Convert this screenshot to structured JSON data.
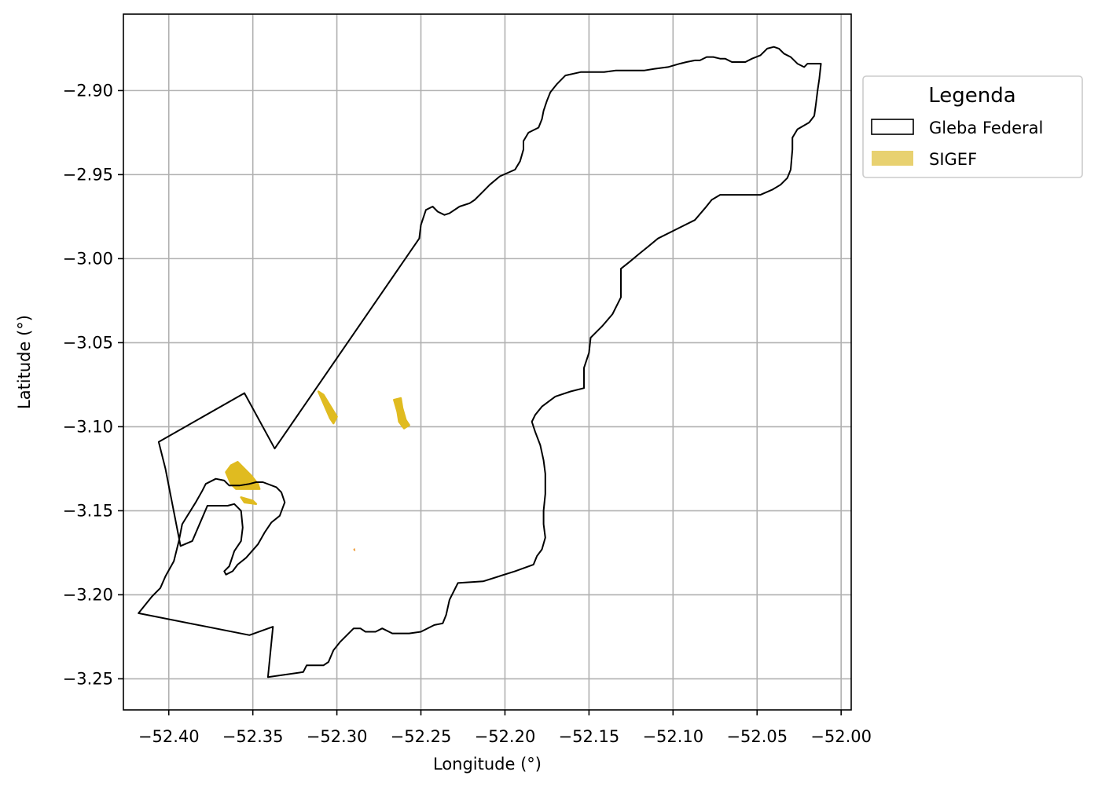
{
  "chart_data": {
    "type": "map",
    "xlabel": "Longitude (°)",
    "ylabel": "Latitude (°)",
    "xlim": [
      -52.427,
      -51.994
    ],
    "ylim": [
      -3.2685,
      -2.8545
    ],
    "xticks": [
      -52.4,
      -52.35,
      -52.3,
      -52.25,
      -52.2,
      -52.15,
      -52.1,
      -52.05,
      -52.0
    ],
    "xtick_labels": [
      "−52.40",
      "−52.35",
      "−52.30",
      "−52.25",
      "−52.20",
      "−52.15",
      "−52.10",
      "−52.05",
      "−52.00"
    ],
    "yticks": [
      -2.9,
      -2.95,
      -3.0,
      -3.05,
      -3.1,
      -3.15,
      -3.2,
      -3.25
    ],
    "ytick_labels": [
      "−2.90",
      "−2.95",
      "−3.00",
      "−3.05",
      "−3.10",
      "−3.15",
      "−3.20",
      "−3.25"
    ],
    "grid": true,
    "legend": {
      "title": "Legenda",
      "placement": "outside-upper-right",
      "entries": [
        {
          "label": "Gleba Federal",
          "style": "outline",
          "color": "#000000"
        },
        {
          "label": "SIGEF",
          "style": "fill",
          "color": "#e8d170"
        }
      ]
    },
    "colors": {
      "gleba_edge": "#000000",
      "sigef_fill": "#e0bb20",
      "sigef_small": "#f0a040",
      "grid": "#b0b0b0"
    },
    "gleba_federal": [
      [
        -52.341,
        -3.249
      ],
      [
        -52.32,
        -3.246
      ],
      [
        -52.318,
        -3.242
      ],
      [
        -52.308,
        -3.242
      ],
      [
        -52.305,
        -3.24
      ],
      [
        -52.302,
        -3.233
      ],
      [
        -52.298,
        -3.228
      ],
      [
        -52.29,
        -3.22
      ],
      [
        -52.286,
        -3.22
      ],
      [
        -52.283,
        -3.222
      ],
      [
        -52.277,
        -3.222
      ],
      [
        -52.273,
        -3.22
      ],
      [
        -52.267,
        -3.223
      ],
      [
        -52.257,
        -3.223
      ],
      [
        -52.25,
        -3.222
      ],
      [
        -52.242,
        -3.218
      ],
      [
        -52.237,
        -3.217
      ],
      [
        -52.235,
        -3.212
      ],
      [
        -52.233,
        -3.203
      ],
      [
        -52.23,
        -3.197
      ],
      [
        -52.228,
        -3.193
      ],
      [
        -52.213,
        -3.192
      ],
      [
        -52.194,
        -3.186
      ],
      [
        -52.183,
        -3.182
      ],
      [
        -52.181,
        -3.177
      ],
      [
        -52.178,
        -3.173
      ],
      [
        -52.176,
        -3.166
      ],
      [
        -52.177,
        -3.158
      ],
      [
        -52.177,
        -3.15
      ],
      [
        -52.176,
        -3.14
      ],
      [
        -52.176,
        -3.128
      ],
      [
        -52.177,
        -3.12
      ],
      [
        -52.179,
        -3.111
      ],
      [
        -52.182,
        -3.103
      ],
      [
        -52.184,
        -3.097
      ],
      [
        -52.182,
        -3.093
      ],
      [
        -52.178,
        -3.088
      ],
      [
        -52.17,
        -3.082
      ],
      [
        -52.161,
        -3.079
      ],
      [
        -52.153,
        -3.077
      ],
      [
        -52.153,
        -3.065
      ],
      [
        -52.15,
        -3.056
      ],
      [
        -52.149,
        -3.047
      ],
      [
        -52.142,
        -3.04
      ],
      [
        -52.136,
        -3.033
      ],
      [
        -52.133,
        -3.027
      ],
      [
        -52.131,
        -3.023
      ],
      [
        -52.131,
        -3.006
      ],
      [
        -52.126,
        -3.002
      ],
      [
        -52.12,
        -2.997
      ],
      [
        -52.115,
        -2.993
      ],
      [
        -52.109,
        -2.988
      ],
      [
        -52.097,
        -2.982
      ],
      [
        -52.087,
        -2.977
      ],
      [
        -52.081,
        -2.97
      ],
      [
        -52.077,
        -2.965
      ],
      [
        -52.072,
        -2.962
      ],
      [
        -52.067,
        -2.962
      ],
      [
        -52.056,
        -2.962
      ],
      [
        -52.048,
        -2.962
      ],
      [
        -52.041,
        -2.959
      ],
      [
        -52.036,
        -2.956
      ],
      [
        -52.032,
        -2.952
      ],
      [
        -52.03,
        -2.947
      ],
      [
        -52.029,
        -2.935
      ],
      [
        -52.029,
        -2.928
      ],
      [
        -52.026,
        -2.923
      ],
      [
        -52.019,
        -2.919
      ],
      [
        -52.016,
        -2.915
      ],
      [
        -52.015,
        -2.908
      ],
      [
        -52.014,
        -2.9
      ],
      [
        -52.013,
        -2.893
      ],
      [
        -52.012,
        -2.884
      ],
      [
        -52.02,
        -2.884
      ],
      [
        -52.022,
        -2.886
      ],
      [
        -52.026,
        -2.884
      ],
      [
        -52.03,
        -2.88
      ],
      [
        -52.034,
        -2.878
      ],
      [
        -52.037,
        -2.875
      ],
      [
        -52.04,
        -2.874
      ],
      [
        -52.044,
        -2.875
      ],
      [
        -52.048,
        -2.879
      ],
      [
        -52.053,
        -2.881
      ],
      [
        -52.057,
        -2.883
      ],
      [
        -52.065,
        -2.883
      ],
      [
        -52.069,
        -2.881
      ],
      [
        -52.072,
        -2.881
      ],
      [
        -52.076,
        -2.88
      ],
      [
        -52.08,
        -2.88
      ],
      [
        -52.084,
        -2.882
      ],
      [
        -52.087,
        -2.882
      ],
      [
        -52.092,
        -2.883
      ],
      [
        -52.096,
        -2.884
      ],
      [
        -52.103,
        -2.886
      ],
      [
        -52.111,
        -2.887
      ],
      [
        -52.117,
        -2.888
      ],
      [
        -52.126,
        -2.888
      ],
      [
        -52.134,
        -2.888
      ],
      [
        -52.141,
        -2.889
      ],
      [
        -52.147,
        -2.889
      ],
      [
        -52.155,
        -2.889
      ],
      [
        -52.164,
        -2.891
      ],
      [
        -52.169,
        -2.896
      ],
      [
        -52.173,
        -2.901
      ],
      [
        -52.175,
        -2.906
      ],
      [
        -52.177,
        -2.912
      ],
      [
        -52.178,
        -2.917
      ],
      [
        -52.18,
        -2.922
      ],
      [
        -52.186,
        -2.925
      ],
      [
        -52.189,
        -2.93
      ],
      [
        -52.189,
        -2.935
      ],
      [
        -52.191,
        -2.942
      ],
      [
        -52.194,
        -2.947
      ],
      [
        -52.203,
        -2.951
      ],
      [
        -52.209,
        -2.956
      ],
      [
        -52.213,
        -2.96
      ],
      [
        -52.218,
        -2.965
      ],
      [
        -52.221,
        -2.967
      ],
      [
        -52.227,
        -2.969
      ],
      [
        -52.233,
        -2.973
      ],
      [
        -52.236,
        -2.974
      ],
      [
        -52.24,
        -2.972
      ],
      [
        -52.243,
        -2.969
      ],
      [
        -52.247,
        -2.971
      ],
      [
        -52.25,
        -2.98
      ],
      [
        -52.251,
        -2.988
      ],
      [
        -52.337,
        -3.113
      ],
      [
        -52.355,
        -3.08
      ],
      [
        -52.406,
        -3.109
      ],
      [
        -52.402,
        -3.125
      ],
      [
        -52.393,
        -3.171
      ],
      [
        -52.386,
        -3.168
      ],
      [
        -52.377,
        -3.147
      ],
      [
        -52.365,
        -3.147
      ],
      [
        -52.361,
        -3.146
      ],
      [
        -52.357,
        -3.15
      ],
      [
        -52.356,
        -3.16
      ],
      [
        -52.357,
        -3.168
      ],
      [
        -52.361,
        -3.174
      ],
      [
        -52.364,
        -3.183
      ],
      [
        -52.367,
        -3.186
      ],
      [
        -52.366,
        -3.188
      ],
      [
        -52.362,
        -3.186
      ],
      [
        -52.359,
        -3.182
      ],
      [
        -52.354,
        -3.178
      ],
      [
        -52.347,
        -3.17
      ],
      [
        -52.343,
        -3.163
      ],
      [
        -52.339,
        -3.157
      ],
      [
        -52.334,
        -3.153
      ],
      [
        -52.331,
        -3.145
      ],
      [
        -52.333,
        -3.139
      ],
      [
        -52.336,
        -3.136
      ],
      [
        -52.344,
        -3.133
      ],
      [
        -52.348,
        -3.133
      ],
      [
        -52.352,
        -3.134
      ],
      [
        -52.358,
        -3.135
      ],
      [
        -52.364,
        -3.135
      ],
      [
        -52.367,
        -3.132
      ],
      [
        -52.372,
        -3.131
      ],
      [
        -52.378,
        -3.134
      ],
      [
        -52.38,
        -3.138
      ],
      [
        -52.384,
        -3.145
      ],
      [
        -52.392,
        -3.158
      ],
      [
        -52.394,
        -3.168
      ],
      [
        -52.397,
        -3.18
      ],
      [
        -52.402,
        -3.189
      ],
      [
        -52.405,
        -3.196
      ],
      [
        -52.41,
        -3.201
      ],
      [
        -52.418,
        -3.211
      ],
      [
        -52.352,
        -3.224
      ],
      [
        -52.338,
        -3.219
      ],
      [
        -52.341,
        -3.249
      ]
    ],
    "sigef": [
      {
        "kind": "parcel",
        "polygon": [
          [
            -52.363,
            -3.123
          ],
          [
            -52.359,
            -3.121
          ],
          [
            -52.356,
            -3.124
          ],
          [
            -52.351,
            -3.129
          ],
          [
            -52.347,
            -3.134
          ],
          [
            -52.346,
            -3.137
          ],
          [
            -52.352,
            -3.137
          ],
          [
            -52.36,
            -3.137
          ],
          [
            -52.363,
            -3.134
          ],
          [
            -52.366,
            -3.127
          ]
        ]
      },
      {
        "kind": "parcel",
        "polygon": [
          [
            -52.357,
            -3.142
          ],
          [
            -52.35,
            -3.144
          ],
          [
            -52.348,
            -3.146
          ],
          [
            -52.355,
            -3.145
          ]
        ]
      },
      {
        "kind": "parcel",
        "polygon": [
          [
            -52.311,
            -3.079
          ],
          [
            -52.308,
            -3.081
          ],
          [
            -52.3,
            -3.094
          ],
          [
            -52.302,
            -3.098
          ],
          [
            -52.304,
            -3.095
          ]
        ]
      },
      {
        "kind": "parcel",
        "polygon": [
          [
            -52.266,
            -3.084
          ],
          [
            -52.262,
            -3.083
          ],
          [
            -52.261,
            -3.089
          ],
          [
            -52.259,
            -3.096
          ],
          [
            -52.257,
            -3.099
          ],
          [
            -52.26,
            -3.101
          ],
          [
            -52.263,
            -3.097
          ],
          [
            -52.264,
            -3.091
          ]
        ]
      },
      {
        "kind": "parcel",
        "polygon": [
          [
            -52.29,
            -3.173
          ],
          [
            -52.2895,
            -3.1725
          ],
          [
            -52.2892,
            -3.1738
          ],
          [
            -52.2898,
            -3.1735
          ]
        ]
      }
    ]
  }
}
